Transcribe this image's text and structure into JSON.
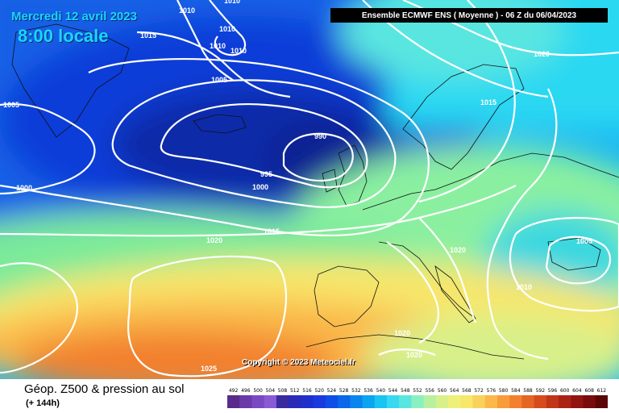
{
  "header": {
    "date_line": "Mercredi 12 avril 2023",
    "time_line": "8:00 locale",
    "model_run": "Ensemble ECMWF ENS  ( Moyenne )  -  06 Z du 06/04/2023"
  },
  "footer": {
    "parameter": "Géop. Z500 & pression au sol",
    "lead_time": "(+ 144h)",
    "copyright": "Copyright © 2023 Meteociel.fr"
  },
  "legend": {
    "ticks": [
      "492",
      "496",
      "500",
      "504",
      "508",
      "512",
      "516",
      "520",
      "524",
      "528",
      "532",
      "536",
      "540",
      "544",
      "548",
      "552",
      "556",
      "560",
      "564",
      "568",
      "572",
      "576",
      "580",
      "584",
      "588",
      "592",
      "596",
      "600",
      "604",
      "608",
      "612"
    ],
    "colors": [
      "#5a2a8a",
      "#6b3aa8",
      "#7a49c2",
      "#8a5ad6",
      "#3a2aa0",
      "#2a2ab8",
      "#1f2fcc",
      "#1a3ae0",
      "#0f4fe6",
      "#0a66ea",
      "#0a84ee",
      "#0aa4f0",
      "#1ac4f2",
      "#3ad8f0",
      "#5ae6e0",
      "#8af0c0",
      "#b6f0a0",
      "#d8f08a",
      "#eef07a",
      "#f8e86a",
      "#fad25a",
      "#fab84a",
      "#f89c3a",
      "#f2802e",
      "#e66424",
      "#d64a1c",
      "#c23418",
      "#aa2214",
      "#921410",
      "#780c0c",
      "#5a0606"
    ]
  },
  "isobars": [
    {
      "label": "1010"
    },
    {
      "label": "1010"
    },
    {
      "label": "1015"
    },
    {
      "label": "1010"
    },
    {
      "label": "1010"
    },
    {
      "label": "1010"
    },
    {
      "label": "1005"
    },
    {
      "label": "1005"
    },
    {
      "label": "990"
    },
    {
      "label": "995"
    },
    {
      "label": "1000"
    },
    {
      "label": "1000"
    },
    {
      "label": "1015"
    },
    {
      "label": "1020"
    },
    {
      "label": "1015"
    },
    {
      "label": "1020"
    },
    {
      "label": "1020"
    },
    {
      "label": "1005"
    },
    {
      "label": "1010"
    },
    {
      "label": "1020"
    },
    {
      "label": "1020"
    },
    {
      "label": "1025"
    }
  ]
}
